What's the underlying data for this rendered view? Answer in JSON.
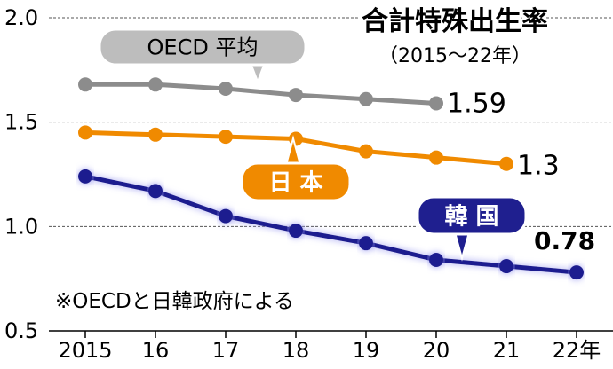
{
  "chart_data": {
    "type": "line",
    "title": "合計特殊出生率",
    "subtitle": "（2015～22年）",
    "categories": [
      "2015",
      "16",
      "17",
      "18",
      "19",
      "20",
      "21",
      "22年"
    ],
    "ylim": [
      0.5,
      2.0
    ],
    "yticks": [
      "0.5",
      "1.0",
      "1.5",
      "2.0"
    ],
    "series": [
      {
        "name": "OECD 平均",
        "values": [
          1.68,
          1.68,
          1.66,
          1.63,
          1.61,
          1.59,
          null,
          null
        ],
        "end_label": "1.59",
        "color": "#8c8c8c",
        "label_bg": "#bdbdbd",
        "label_fg": "#000000"
      },
      {
        "name": "日 本",
        "values": [
          1.45,
          1.44,
          1.43,
          1.42,
          1.36,
          1.33,
          1.3,
          null
        ],
        "end_label": "1.3",
        "color": "#f08a00",
        "label_bg": "#f08a00",
        "label_fg": "#ffffff"
      },
      {
        "name": "韓 国",
        "values": [
          1.24,
          1.17,
          1.05,
          0.98,
          0.92,
          0.84,
          0.81,
          0.78
        ],
        "end_label": "0.78",
        "color": "#1f1f8f",
        "label_bg": "#1f1f8f",
        "label_fg": "#ffffff"
      }
    ],
    "note": "※OECDと日韓政府による"
  }
}
